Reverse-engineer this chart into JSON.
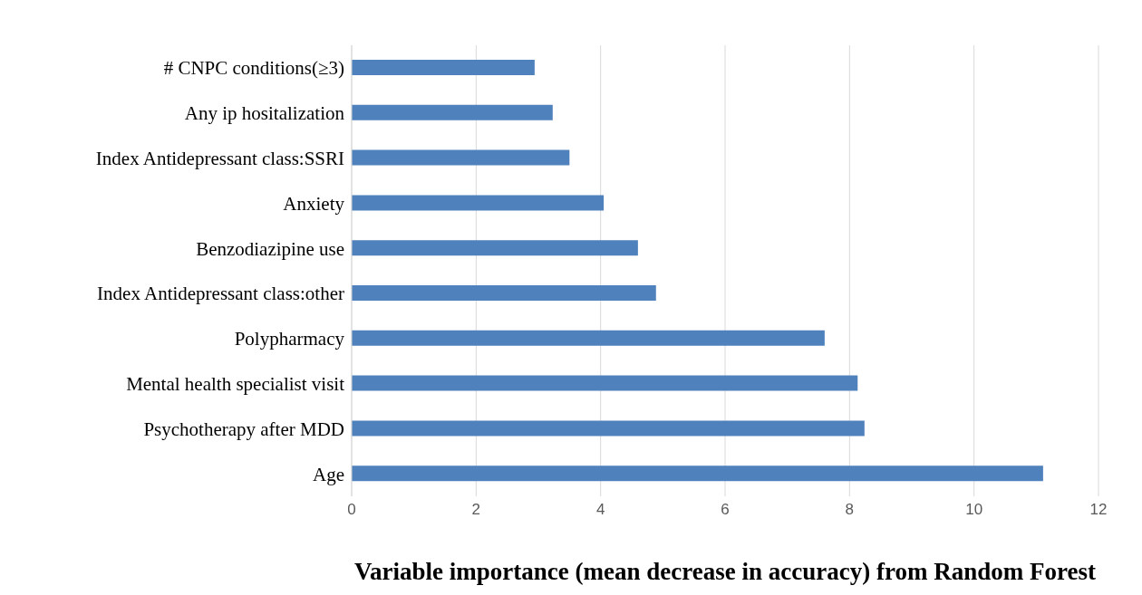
{
  "chart_data": {
    "type": "bar",
    "orientation": "horizontal",
    "xlabel": "Variable importance (mean decrease in accuracy) from Random Forest",
    "categories": [
      "# CNPC conditions(≥3)",
      "Any ip hositalization",
      "Index Antidepressant class:SSRI",
      "Anxiety",
      "Benzodiazipine use",
      "Index Antidepressant class:other",
      "Polypharmacy",
      "Mental health specialist visit",
      "Psychotherapy after MDD",
      "Age"
    ],
    "values": [
      2.94,
      3.23,
      3.5,
      4.05,
      4.6,
      4.89,
      7.6,
      8.13,
      8.24,
      11.11
    ],
    "color": "#4f81bd",
    "xlim": [
      0,
      12
    ],
    "xticks": [
      0,
      2,
      4,
      6,
      8,
      10,
      12
    ],
    "grid": "x"
  }
}
